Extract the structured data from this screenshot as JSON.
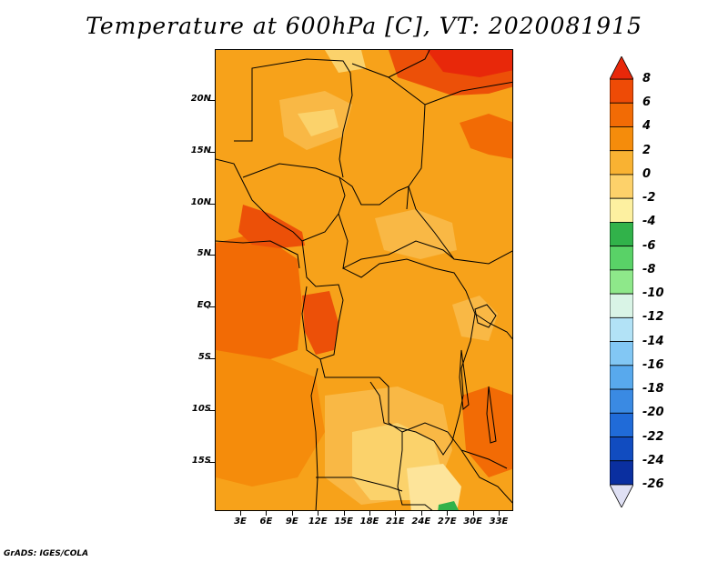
{
  "title": "Temperature at 600hPa [C], VT: 2020081915",
  "credit": "GrADS: IGES/COLA",
  "map": {
    "lat_labels": [
      "20N",
      "15N",
      "10N",
      "5N",
      "EQ",
      "5S",
      "10S",
      "15S"
    ],
    "lon_labels": [
      "3E",
      "6E",
      "9E",
      "12E",
      "15E",
      "18E",
      "21E",
      "24E",
      "27E",
      "30E",
      "33E"
    ]
  },
  "colorbar": {
    "labels": [
      "8",
      "6",
      "4",
      "2",
      "0",
      "-2",
      "-4",
      "-6",
      "-8",
      "-10",
      "-12",
      "-14",
      "-16",
      "-18",
      "-20",
      "-22",
      "-24",
      "-26"
    ],
    "colors": [
      "#e8280a",
      "#ee4b06",
      "#f26b05",
      "#f58c0b",
      "#f9b232",
      "#fdd16a",
      "#fdf0a0",
      "#31b24a",
      "#59d267",
      "#8ee88a",
      "#d9f4e6",
      "#b2e2f6",
      "#82c7f4",
      "#58a9ed",
      "#3a8ae3",
      "#206bd8",
      "#114cc0",
      "#0a2fa0",
      "#071c6e"
    ],
    "top_color": "#e8280a",
    "bottom_color": "#dfe0f4"
  },
  "field_colors": {
    "base": "#f7a21a",
    "warm": "#f58c0b",
    "hot": "#f26b05",
    "hottest": "#ec5008",
    "light": "#f9b845",
    "lighter": "#fbd26b",
    "cool": "#fde49a",
    "green": "#31b24a"
  }
}
